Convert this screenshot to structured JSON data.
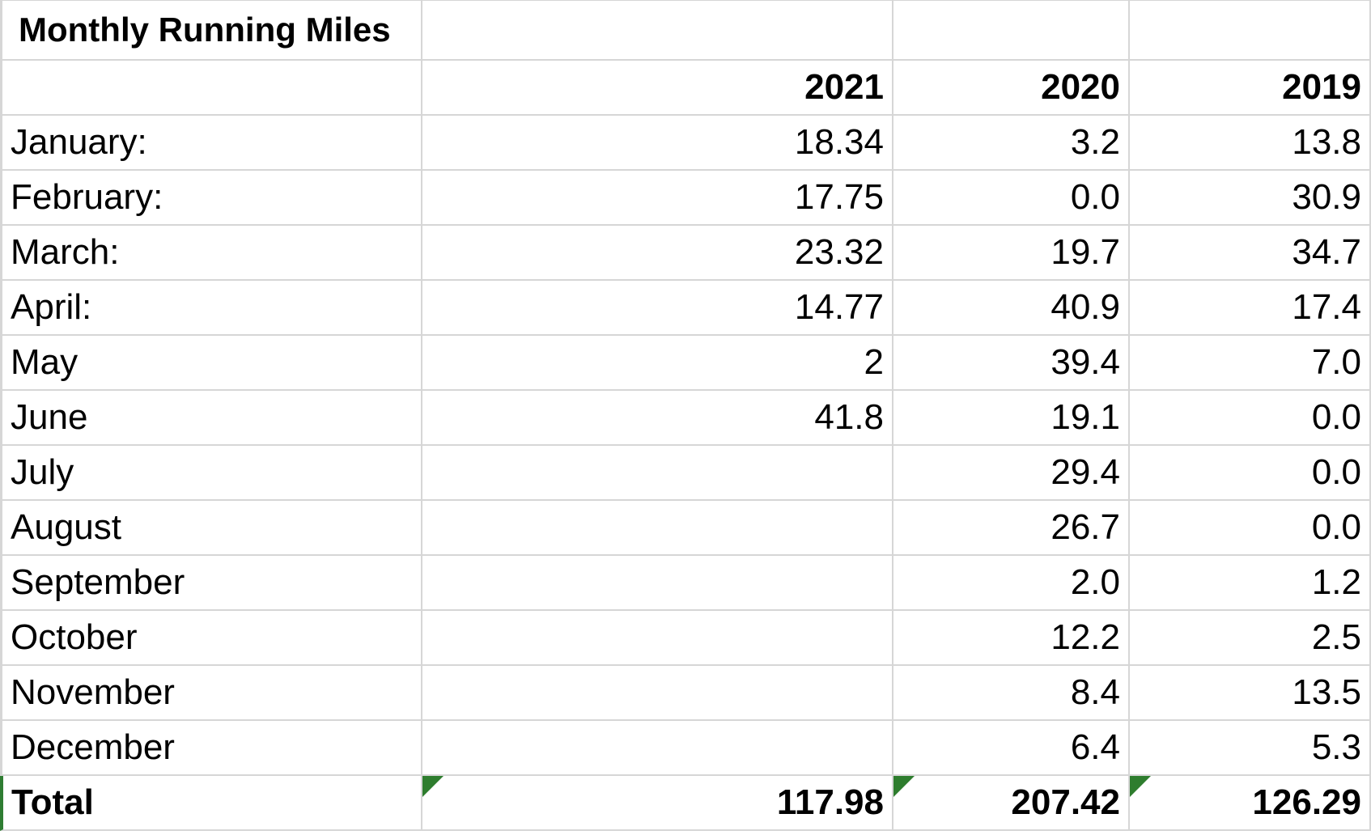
{
  "sheet": {
    "title": "Monthly Running Miles",
    "years": [
      "2021",
      "2020",
      "2019"
    ],
    "rows": [
      {
        "month": "January:",
        "values": [
          "18.34",
          "3.2",
          "13.8"
        ]
      },
      {
        "month": "February:",
        "values": [
          "17.75",
          "0.0",
          "30.9"
        ]
      },
      {
        "month": "March:",
        "values": [
          "23.32",
          "19.7",
          "34.7"
        ]
      },
      {
        "month": "April:",
        "values": [
          "14.77",
          "40.9",
          "17.4"
        ]
      },
      {
        "month": "May",
        "values": [
          "2",
          "39.4",
          "7.0"
        ]
      },
      {
        "month": "June",
        "values": [
          "41.8",
          "19.1",
          "0.0"
        ]
      },
      {
        "month": "July",
        "values": [
          "",
          "29.4",
          "0.0"
        ]
      },
      {
        "month": "August",
        "values": [
          "",
          "26.7",
          "0.0"
        ]
      },
      {
        "month": "September",
        "values": [
          "",
          "2.0",
          "1.2"
        ]
      },
      {
        "month": "October",
        "values": [
          "",
          "12.2",
          "2.5"
        ]
      },
      {
        "month": "November",
        "values": [
          "",
          "8.4",
          "13.5"
        ]
      },
      {
        "month": "December",
        "values": [
          "",
          "6.4",
          "5.3"
        ]
      }
    ],
    "total": {
      "label": "Total",
      "values": [
        "117.98",
        "207.42",
        "126.29"
      ]
    }
  },
  "colors": {
    "gridline": "#d6d6d6",
    "error_indicator": "#2e7d2e",
    "active_cell_border": "#2e7d32"
  },
  "icons": {
    "error_indicator": "green-triangle-icon"
  }
}
